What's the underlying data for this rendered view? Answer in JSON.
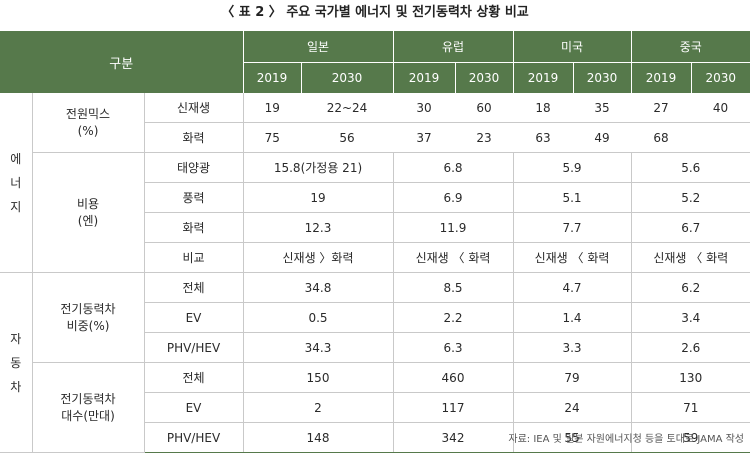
{
  "title": "〈 표 2 〉 주요 국가별 에너지 및 전기동력차 상황 비교",
  "header": {
    "category": "구분",
    "countries": [
      "일본",
      "유럽",
      "미국",
      "중국"
    ],
    "years": [
      "2019",
      "2030"
    ]
  },
  "groups": {
    "energy": [
      "에",
      "너",
      "지"
    ],
    "auto": [
      "자",
      "동",
      "차"
    ]
  },
  "power_mix": {
    "label": [
      "전원믹스",
      "(%)"
    ],
    "rows": [
      {
        "name": "신재생",
        "values": [
          "19",
          "22~24",
          "30",
          "60",
          "18",
          "35",
          "27",
          "40"
        ]
      },
      {
        "name": "화력",
        "values": [
          "75",
          "56",
          "37",
          "23",
          "63",
          "49",
          "68",
          ""
        ]
      }
    ]
  },
  "cost": {
    "label": [
      "비용",
      "(엔)"
    ],
    "rows": [
      {
        "name": "태양광",
        "values": [
          "15.8(가정용 21)",
          "6.8",
          "5.9",
          "5.6"
        ]
      },
      {
        "name": "풍력",
        "values": [
          "19",
          "6.9",
          "5.1",
          "5.2"
        ]
      },
      {
        "name": "화력",
        "values": [
          "12.3",
          "11.9",
          "7.7",
          "6.7"
        ]
      },
      {
        "name": "비교",
        "values": [
          "신재생 〉화력",
          "신재생 〈 화력",
          "신재생 〈 화력",
          "신재생 〈 화력"
        ]
      }
    ]
  },
  "ev_share": {
    "label": [
      "전기동력차",
      "비중(%)"
    ],
    "rows": [
      {
        "name": "전체",
        "values": [
          "34.8",
          "8.5",
          "4.7",
          "6.2"
        ]
      },
      {
        "name": "EV",
        "values": [
          "0.5",
          "2.2",
          "1.4",
          "3.4"
        ]
      },
      {
        "name": "PHV/HEV",
        "values": [
          "34.3",
          "6.3",
          "3.3",
          "2.6"
        ]
      }
    ]
  },
  "ev_count": {
    "label": [
      "전기동력차",
      "대수(만대)"
    ],
    "rows": [
      {
        "name": "전체",
        "values": [
          "150",
          "460",
          "79",
          "130"
        ]
      },
      {
        "name": "EV",
        "values": [
          "2",
          "117",
          "24",
          "71"
        ]
      },
      {
        "name": "PHV/HEV",
        "values": [
          "148",
          "342",
          "55",
          "59"
        ]
      }
    ]
  },
  "source": "자료: IEA 및 일본 자원에너지청 등을 토대로 JAMA 작성",
  "colors": {
    "header_bg": "#56794b",
    "header_text": "#ffffff",
    "grid": "#c9c9c9"
  }
}
